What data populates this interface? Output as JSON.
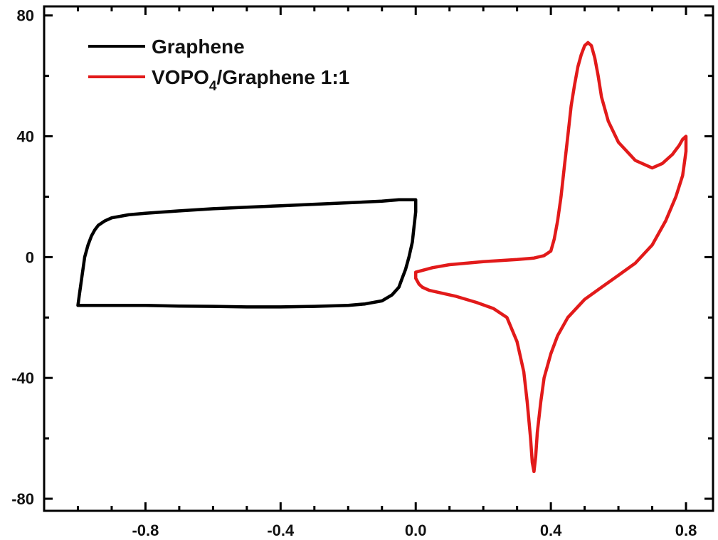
{
  "chart_data": {
    "type": "line",
    "title": "",
    "xlabel": "",
    "ylabel": "",
    "xlim": [
      -1.1,
      0.88
    ],
    "ylim": [
      -84,
      83
    ],
    "x_ticks": [
      -0.8,
      -0.4,
      0.0,
      0.4,
      0.8
    ],
    "x_tick_labels": [
      "-0.8",
      "-0.4",
      "0.0",
      "0.4",
      "0.8"
    ],
    "y_ticks": [
      -80,
      -40,
      0,
      40,
      80
    ],
    "y_tick_labels": [
      "-80",
      "-40",
      "0",
      "40",
      "80"
    ],
    "grid": false,
    "legend": {
      "placement": "top-left",
      "entries": [
        {
          "label": "Graphene",
          "color": "#000000"
        },
        {
          "label_main": "VOPO",
          "label_sub": "4",
          "label_rest": "/Graphene 1:1",
          "color": "#e21a1a"
        }
      ]
    },
    "series": [
      {
        "name": "Graphene",
        "color": "#000000",
        "x": [
          -1.0,
          -0.995,
          -0.99,
          -0.985,
          -0.98,
          -0.97,
          -0.96,
          -0.95,
          -0.94,
          -0.92,
          -0.9,
          -0.85,
          -0.8,
          -0.7,
          -0.6,
          -0.5,
          -0.4,
          -0.3,
          -0.2,
          -0.1,
          -0.05,
          0.0,
          0.0,
          -0.005,
          -0.01,
          -0.02,
          -0.03,
          -0.04,
          -0.05,
          -0.07,
          -0.1,
          -0.15,
          -0.2,
          -0.3,
          -0.4,
          -0.5,
          -0.6,
          -0.7,
          -0.8,
          -0.9,
          -0.95,
          -1.0
        ],
        "y": [
          -16,
          -12,
          -8,
          -4,
          0,
          4,
          7,
          9,
          10.5,
          12,
          13,
          14,
          14.5,
          15.3,
          16,
          16.5,
          17,
          17.5,
          18,
          18.5,
          19,
          19,
          15,
          10,
          5,
          0,
          -4,
          -7,
          -10,
          -12.5,
          -14.5,
          -15.5,
          -16,
          -16.3,
          -16.5,
          -16.5,
          -16.3,
          -16.2,
          -16,
          -16,
          -16,
          -16
        ]
      },
      {
        "name": "VOPO4/Graphene 1:1",
        "color": "#e21a1a",
        "x": [
          0.0,
          0.05,
          0.1,
          0.2,
          0.3,
          0.35,
          0.38,
          0.4,
          0.41,
          0.42,
          0.43,
          0.44,
          0.45,
          0.46,
          0.47,
          0.48,
          0.49,
          0.5,
          0.51,
          0.52,
          0.53,
          0.54,
          0.55,
          0.57,
          0.6,
          0.65,
          0.7,
          0.73,
          0.76,
          0.78,
          0.79,
          0.8,
          0.8,
          0.79,
          0.77,
          0.74,
          0.7,
          0.65,
          0.6,
          0.55,
          0.5,
          0.45,
          0.42,
          0.4,
          0.38,
          0.37,
          0.36,
          0.355,
          0.35,
          0.345,
          0.34,
          0.33,
          0.32,
          0.3,
          0.27,
          0.23,
          0.18,
          0.12,
          0.08,
          0.04,
          0.02,
          0.01,
          0.0
        ],
        "y": [
          -5,
          -3.5,
          -2.5,
          -1.5,
          -0.8,
          -0.3,
          0.5,
          2,
          6,
          12,
          20,
          30,
          40,
          50,
          57,
          63,
          67,
          70,
          71,
          70,
          66,
          60,
          53,
          45,
          38,
          32,
          29.5,
          31,
          34,
          37,
          39,
          40,
          35,
          27,
          20,
          12,
          4,
          -2,
          -6,
          -10,
          -14,
          -20,
          -26,
          -32,
          -40,
          -48,
          -58,
          -66,
          -71,
          -68,
          -60,
          -48,
          -38,
          -28,
          -20,
          -17,
          -15,
          -13,
          -12,
          -11,
          -10,
          -9,
          -7
        ]
      }
    ]
  }
}
